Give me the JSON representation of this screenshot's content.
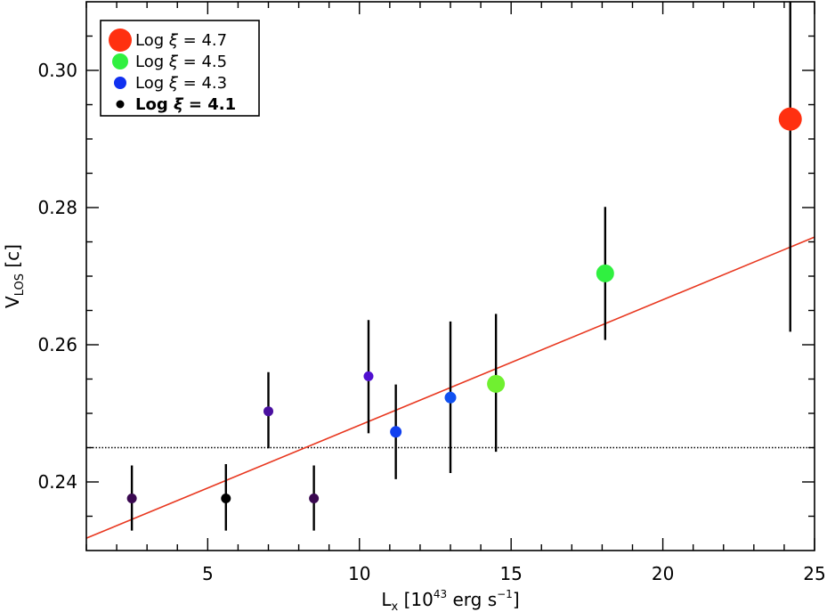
{
  "chart_data": {
    "type": "scatter",
    "xlabel": {
      "main": "L",
      "sub": "x",
      "pre": " [10",
      "sup1": "43",
      "mid": " erg s",
      "sup2": "−1",
      "post": "]"
    },
    "ylabel": {
      "main": "V",
      "sub": "LOS",
      "post": " [c]"
    },
    "xlim": [
      1,
      25
    ],
    "ylim": [
      0.23,
      0.31
    ],
    "xticks": [
      5,
      10,
      15,
      20,
      25
    ],
    "xtick_labels": [
      "5",
      "10",
      "15",
      "20",
      "25"
    ],
    "yticks": [
      0.24,
      0.26,
      0.28,
      0.3
    ],
    "ytick_labels": [
      "0.24",
      "0.26",
      "0.28",
      "0.30"
    ],
    "x_minor_step": 1,
    "y_minor_step": 0.005,
    "grid": false,
    "legend_placement": "top-left",
    "legend": [
      {
        "label": "Log ξ = 4.7",
        "prefix": "Log ",
        "symbol": "ξ",
        "suffix": " = 4.7",
        "color": "#ff3010",
        "bold": false
      },
      {
        "label": "Log ξ = 4.5",
        "prefix": "Log ",
        "symbol": "ξ",
        "suffix": " = 4.5",
        "color": "#30f040",
        "bold": false
      },
      {
        "label": "Log ξ = 4.3",
        "prefix": "Log ",
        "symbol": "ξ",
        "suffix": " = 4.3",
        "color": "#1030f0",
        "bold": false
      },
      {
        "label": "Log ξ = 4.1",
        "prefix": "Log ",
        "symbol": "ξ",
        "suffix": " = 4.1",
        "color": "#000000",
        "bold": true
      }
    ],
    "points": [
      {
        "x": 2.5,
        "y": 0.2376,
        "yerr_low": 0.2329,
        "yerr_high": 0.2424,
        "color": "#3a0850",
        "size": "small"
      },
      {
        "x": 5.6,
        "y": 0.2376,
        "yerr_low": 0.2329,
        "yerr_high": 0.2426,
        "color": "#000000",
        "size": "small"
      },
      {
        "x": 7.0,
        "y": 0.2503,
        "yerr_low": 0.2449,
        "yerr_high": 0.256,
        "color": "#4a10a0",
        "size": "small"
      },
      {
        "x": 8.5,
        "y": 0.2376,
        "yerr_low": 0.2329,
        "yerr_high": 0.2424,
        "color": "#3a0850",
        "size": "small"
      },
      {
        "x": 10.3,
        "y": 0.2554,
        "yerr_low": 0.2471,
        "yerr_high": 0.2636,
        "color": "#5010d0",
        "size": "small"
      },
      {
        "x": 11.2,
        "y": 0.2473,
        "yerr_low": 0.2404,
        "yerr_high": 0.2542,
        "color": "#1040f0",
        "size": "medium"
      },
      {
        "x": 13.0,
        "y": 0.2523,
        "yerr_low": 0.2413,
        "yerr_high": 0.2634,
        "color": "#1050f0",
        "size": "medium"
      },
      {
        "x": 14.5,
        "y": 0.2543,
        "yerr_low": 0.2444,
        "yerr_high": 0.2645,
        "color": "#70f030",
        "size": "large"
      },
      {
        "x": 18.1,
        "y": 0.2704,
        "yerr_low": 0.2607,
        "yerr_high": 0.2801,
        "color": "#30f040",
        "size": "large"
      },
      {
        "x": 24.2,
        "y": 0.2929,
        "yerr_low": 0.2619,
        "yerr_high": 0.31,
        "color": "#ff3010",
        "size": "xlarge"
      }
    ],
    "fit_line": {
      "x": [
        1,
        25
      ],
      "y": [
        0.2318,
        0.2757
      ],
      "color": "#e83820"
    },
    "reference_line": {
      "y": 0.245,
      "style": "dotted",
      "color": "#000000"
    }
  }
}
